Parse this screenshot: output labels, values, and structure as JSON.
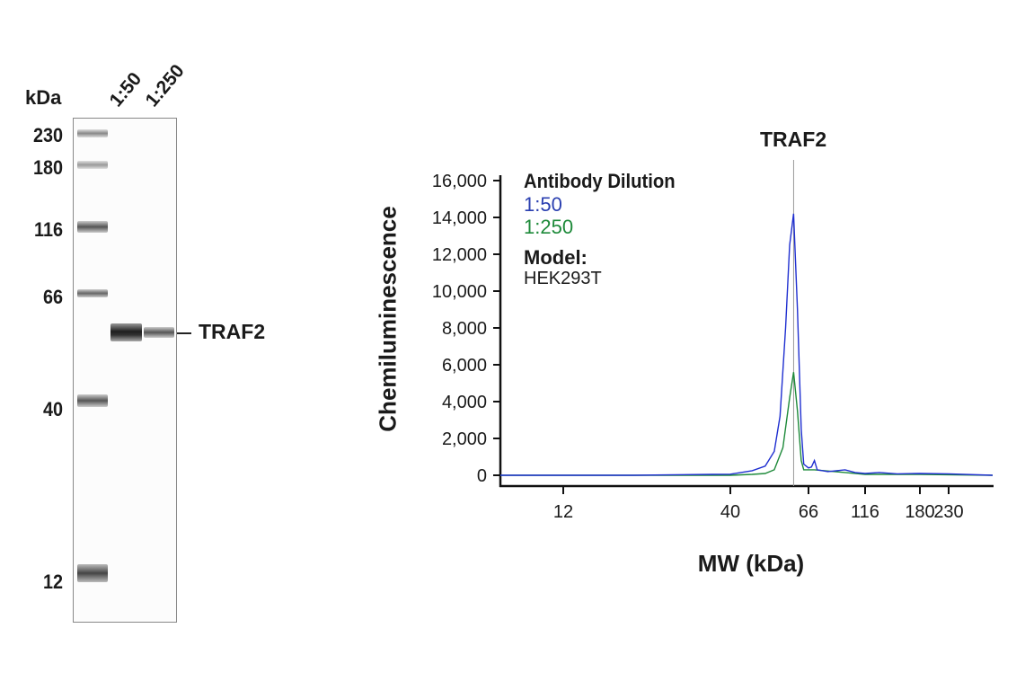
{
  "blot": {
    "unit_label": "kDa",
    "lane_labels": [
      "1:50",
      "1:250"
    ],
    "markers": [
      "230",
      "180",
      "116",
      "66",
      "40",
      "12"
    ],
    "target_label": "TRAF2"
  },
  "chart_data": {
    "type": "line",
    "title": "TRAF2",
    "xlabel": "MW (kDa)",
    "ylabel": "Chemiluminescence",
    "x_scale": "log (ladder-calibrated)",
    "xlim": [
      7.5,
      330
    ],
    "ylim": [
      0,
      16000
    ],
    "x_ticks": [
      "12",
      "40",
      "66",
      "116",
      "180",
      "230"
    ],
    "x_tick_values": [
      12,
      40,
      66,
      116,
      180,
      230
    ],
    "y_ticks": [
      "0",
      "2,000",
      "4,000",
      "6,000",
      "8,000",
      "10,000",
      "12,000",
      "14,000",
      "16,000"
    ],
    "y_tick_values": [
      0,
      2000,
      4000,
      6000,
      8000,
      10000,
      12000,
      14000,
      16000
    ],
    "reference_line": {
      "label": "TRAF2",
      "x": 60
    },
    "grid": false,
    "legend": {
      "placement": "top-left",
      "title": "Antibody Dilution",
      "model_label": "Model:",
      "model_value": "HEK293T"
    },
    "series": [
      {
        "name": "1:50",
        "color": "#1f2fd0",
        "x": [
          7.5,
          20,
          35,
          40,
          46,
          50,
          53,
          55,
          57,
          58.5,
          60,
          61.5,
          63,
          64,
          66,
          68,
          70,
          72,
          80,
          95,
          105,
          116,
          130,
          150,
          180,
          230,
          330
        ],
        "y": [
          0,
          0,
          50,
          60,
          250,
          500,
          1300,
          3200,
          8000,
          12500,
          14200,
          9000,
          2500,
          600,
          400,
          450,
          800,
          300,
          200,
          300,
          150,
          100,
          150,
          80,
          100,
          80,
          0
        ]
      },
      {
        "name": "1:250",
        "color": "#1e8a3a",
        "x": [
          7.5,
          20,
          40,
          46,
          50,
          53,
          56,
          58.5,
          60,
          61.5,
          63,
          64,
          70,
          95,
          116,
          180,
          330
        ],
        "y": [
          0,
          0,
          0,
          50,
          100,
          300,
          1500,
          4200,
          5600,
          3500,
          800,
          300,
          300,
          150,
          50,
          50,
          0
        ]
      }
    ]
  }
}
